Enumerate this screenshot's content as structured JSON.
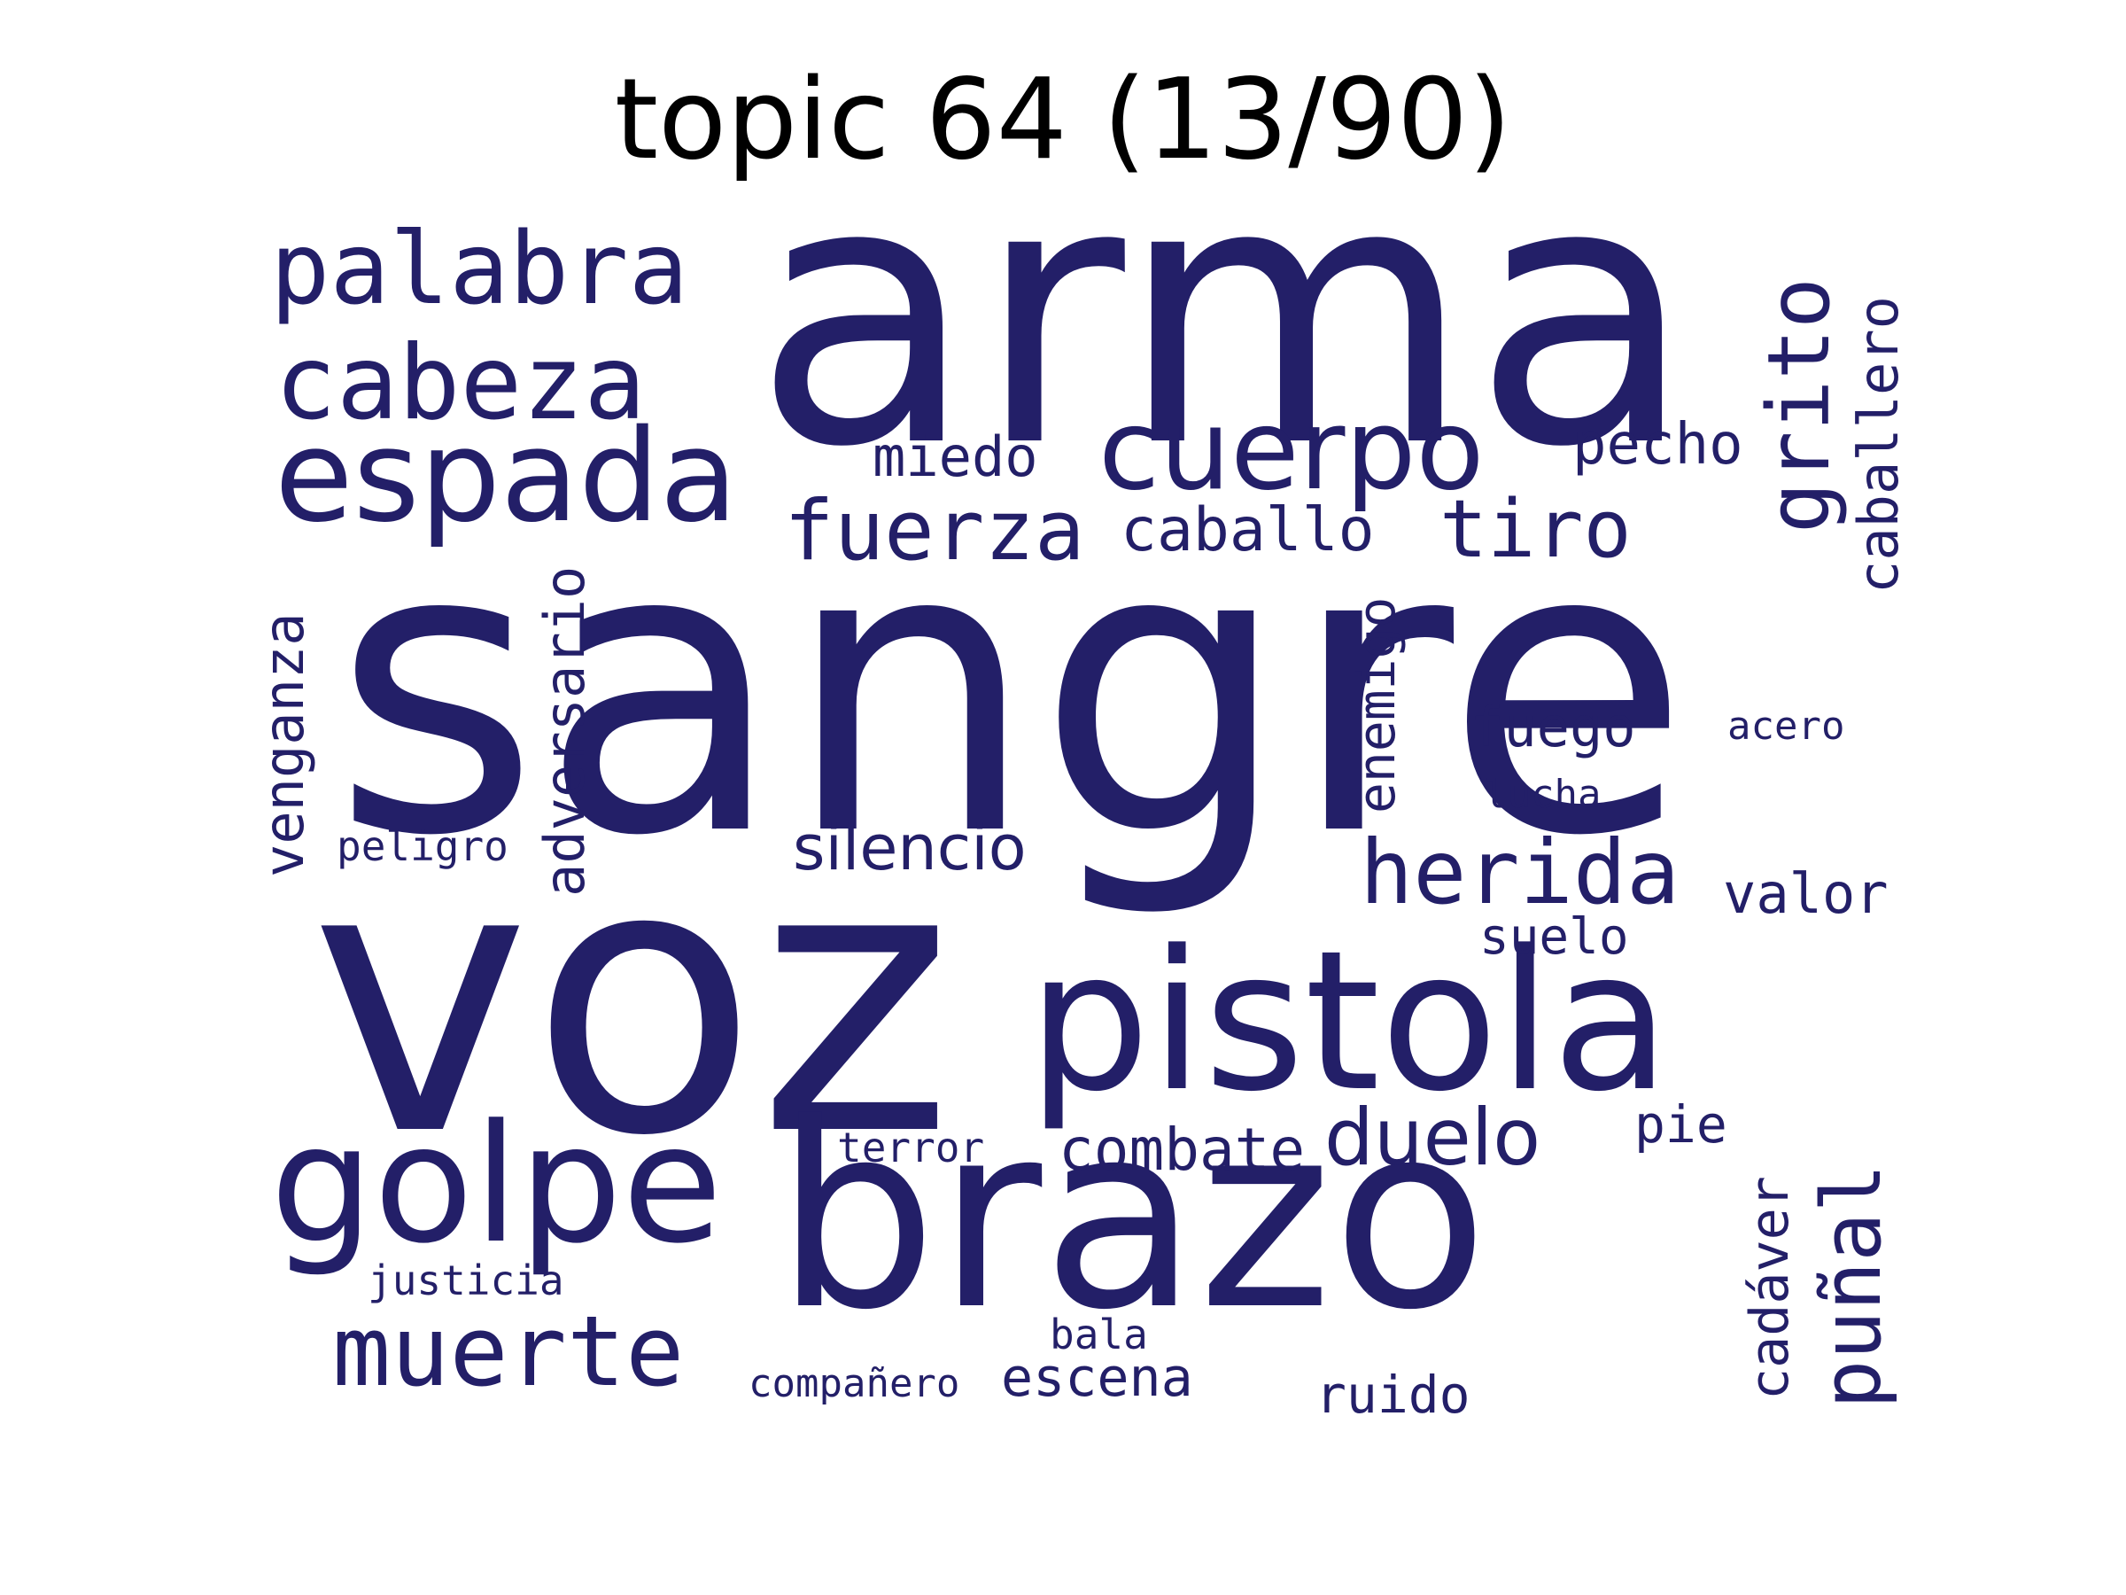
{
  "title": "topic 64 (13/90)",
  "colors": {
    "background": "#ffffff",
    "title": "#000000",
    "words": "#231f68"
  },
  "words": {
    "arma": "arma",
    "sangre": "sangre",
    "voz": "voz",
    "pistola": "pistola",
    "brazo": "brazo",
    "golpe": "golpe",
    "palabra": "palabra",
    "cabeza": "cabeza",
    "espada": "espada",
    "cuerpo": "cuerpo",
    "fuerza": "fuerza",
    "miedo": "miedo",
    "caballo": "caballo",
    "tiro": "tiro",
    "pecho": "pecho",
    "grito": "grito",
    "caballero": "caballero",
    "venganza": "venganza",
    "adversario": "adversario",
    "enemigo": "enemigo",
    "fuego": "fuego",
    "acero": "acero",
    "lucha": "lucha",
    "peligro": "peligro",
    "silencio": "silencio",
    "herida": "herida",
    "valor": "valor",
    "suelo": "suelo",
    "muerte": "muerte",
    "duelo": "duelo",
    "combate": "combate",
    "terror": "terror",
    "pie": "pie",
    "justicia": "justicia",
    "cadaver": "cadáver",
    "punal": "puñal",
    "bala": "bala",
    "companero": "compañero",
    "escena": "escena",
    "ruido": "ruido"
  }
}
